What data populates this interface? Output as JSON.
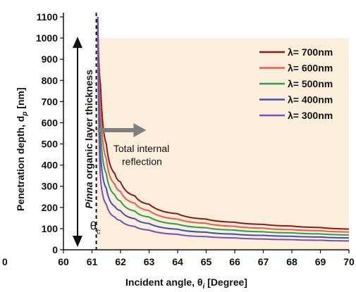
{
  "chart_data": {
    "type": "line",
    "xlabel": "Incident angle, θ",
    "xlabel_sub": "i",
    "xlabel_unit": " [Degree]",
    "ylabel": "Penetration depth, d",
    "ylabel_sub": "p",
    "ylabel_unit": " [nm]",
    "xlim": [
      60,
      70
    ],
    "ylim": [
      0,
      1100
    ],
    "x_ticks": [
      60,
      61,
      62,
      63,
      64,
      65,
      66,
      67,
      68,
      69,
      70
    ],
    "y_ticks": [
      0,
      100,
      200,
      300,
      400,
      500,
      600,
      700,
      800,
      900,
      1000,
      1100
    ],
    "stray_tick_label": "0",
    "critical_angle": 61.15,
    "critical_angle_label": "θ",
    "critical_angle_sub": "c",
    "band_label_italic": "Pinna",
    "band_label_rest": " organic layer thickness",
    "band_ymax": 1000,
    "band_color": "#fbefdb",
    "annotation": [
      "Total internal",
      "reflection"
    ],
    "legend_position": "top-right",
    "series": [
      {
        "name": "λ= 700nm",
        "color": "#8b1a1a",
        "x": [
          61.2,
          61.3,
          61.5,
          61.8,
          62.0,
          62.5,
          63.0,
          64.0,
          65.0,
          66.0,
          67.0,
          68.0,
          69.0,
          70.0
        ],
        "values": [
          1100,
          780,
          500,
          360,
          320,
          255,
          215,
          170,
          145,
          130,
          120,
          112,
          105,
          98
        ]
      },
      {
        "name": "λ= 600nm",
        "color": "#f05a4a",
        "x": [
          61.2,
          61.3,
          61.5,
          61.8,
          62.0,
          62.5,
          63.0,
          64.0,
          65.0,
          66.0,
          67.0,
          68.0,
          69.0,
          70.0
        ],
        "values": [
          1100,
          670,
          430,
          310,
          275,
          220,
          185,
          145,
          125,
          111,
          102,
          95,
          90,
          84
        ]
      },
      {
        "name": "λ= 500nm",
        "color": "#2e9e4a",
        "x": [
          61.2,
          61.3,
          61.5,
          61.8,
          62.0,
          62.5,
          63.0,
          64.0,
          65.0,
          66.0,
          67.0,
          68.0,
          69.0,
          70.0
        ],
        "values": [
          1100,
          560,
          360,
          260,
          230,
          183,
          155,
          121,
          104,
          93,
          85,
          80,
          75,
          70
        ]
      },
      {
        "name": "λ= 400nm",
        "color": "#3b52b0",
        "x": [
          61.2,
          61.3,
          61.5,
          61.8,
          62.0,
          62.5,
          63.0,
          64.0,
          65.0,
          66.0,
          67.0,
          68.0,
          69.0,
          70.0
        ],
        "values": [
          1100,
          450,
          290,
          205,
          185,
          147,
          124,
          97,
          83,
          74,
          68,
          64,
          60,
          56
        ]
      },
      {
        "name": "λ= 300nm",
        "color": "#7a4fb8",
        "x": [
          61.2,
          61.3,
          61.5,
          61.8,
          62.0,
          62.5,
          63.0,
          64.0,
          65.0,
          66.0,
          67.0,
          68.0,
          69.0,
          70.0
        ],
        "values": [
          1100,
          335,
          215,
          155,
          138,
          110,
          93,
          73,
          62,
          56,
          51,
          48,
          45,
          42
        ]
      }
    ]
  }
}
